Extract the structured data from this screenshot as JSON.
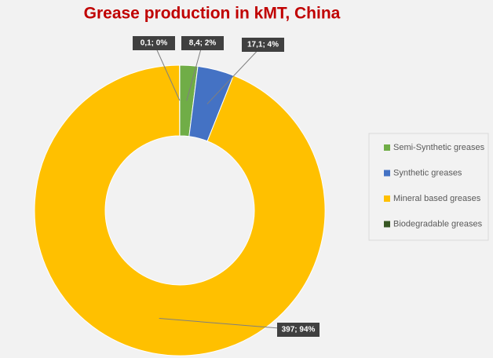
{
  "chart_data": {
    "type": "donut",
    "title": "Grease production in kMT, China",
    "categories": [
      "Semi-Synthetic greases",
      "Synthetic greases",
      "Mineral based greases",
      "Biodegradable greases"
    ],
    "values": [
      8.4,
      17.1,
      397,
      0.1
    ],
    "value_labels": [
      "8,4; 2%",
      "17,1; 4%",
      "397; 94%",
      "0,1; 0%"
    ],
    "colors": [
      "#70ad47",
      "#4472c4",
      "#ffc000",
      "#375623"
    ]
  }
}
